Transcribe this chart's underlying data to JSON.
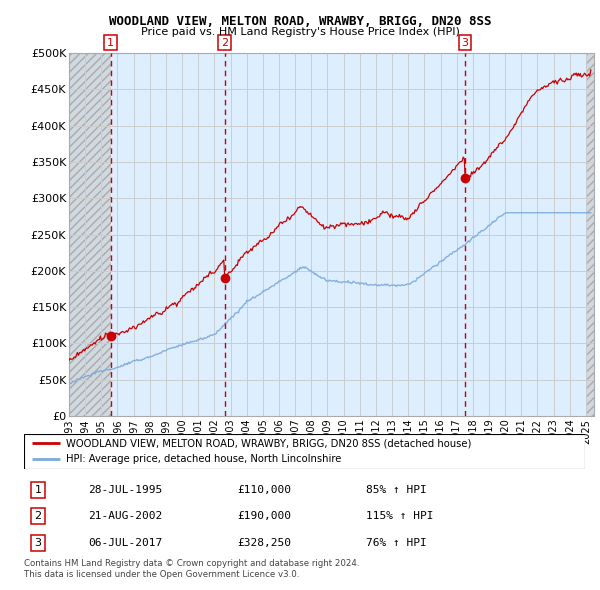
{
  "title1": "WOODLAND VIEW, MELTON ROAD, WRAWBY, BRIGG, DN20 8SS",
  "title2": "Price paid vs. HM Land Registry's House Price Index (HPI)",
  "ylim": [
    0,
    500000
  ],
  "yticks": [
    0,
    50000,
    100000,
    150000,
    200000,
    250000,
    300000,
    350000,
    400000,
    450000,
    500000
  ],
  "ytick_labels": [
    "£0",
    "£50K",
    "£100K",
    "£150K",
    "£200K",
    "£250K",
    "£300K",
    "£350K",
    "£400K",
    "£450K",
    "£500K"
  ],
  "xlim_start": 1993.0,
  "xlim_end": 2025.5,
  "xticks": [
    1993,
    1994,
    1995,
    1996,
    1997,
    1998,
    1999,
    2000,
    2001,
    2002,
    2003,
    2004,
    2005,
    2006,
    2007,
    2008,
    2009,
    2010,
    2011,
    2012,
    2013,
    2014,
    2015,
    2016,
    2017,
    2018,
    2019,
    2020,
    2021,
    2022,
    2023,
    2024,
    2025
  ],
  "sale_dates": [
    1995.57,
    2002.64,
    2017.51
  ],
  "sale_prices": [
    110000,
    190000,
    328250
  ],
  "sale_labels": [
    "1",
    "2",
    "3"
  ],
  "red_line_color": "#cc0000",
  "blue_line_color": "#7aaadd",
  "grid_color": "#cccccc",
  "bg_color": "#ddeeff",
  "hatch_bg_color": "#e8e8e8",
  "legend_line1": "WOODLAND VIEW, MELTON ROAD, WRAWBY, BRIGG, DN20 8SS (detached house)",
  "legend_line2": "HPI: Average price, detached house, North Lincolnshire",
  "table_entries": [
    {
      "num": "1",
      "date": "28-JUL-1995",
      "price": "£110,000",
      "hpi": "85% ↑ HPI"
    },
    {
      "num": "2",
      "date": "21-AUG-2002",
      "price": "£190,000",
      "hpi": "115% ↑ HPI"
    },
    {
      "num": "3",
      "date": "06-JUL-2017",
      "price": "£328,250",
      "hpi": "76% ↑ HPI"
    }
  ],
  "footnote1": "Contains HM Land Registry data © Crown copyright and database right 2024.",
  "footnote2": "This data is licensed under the Open Government Licence v3.0."
}
